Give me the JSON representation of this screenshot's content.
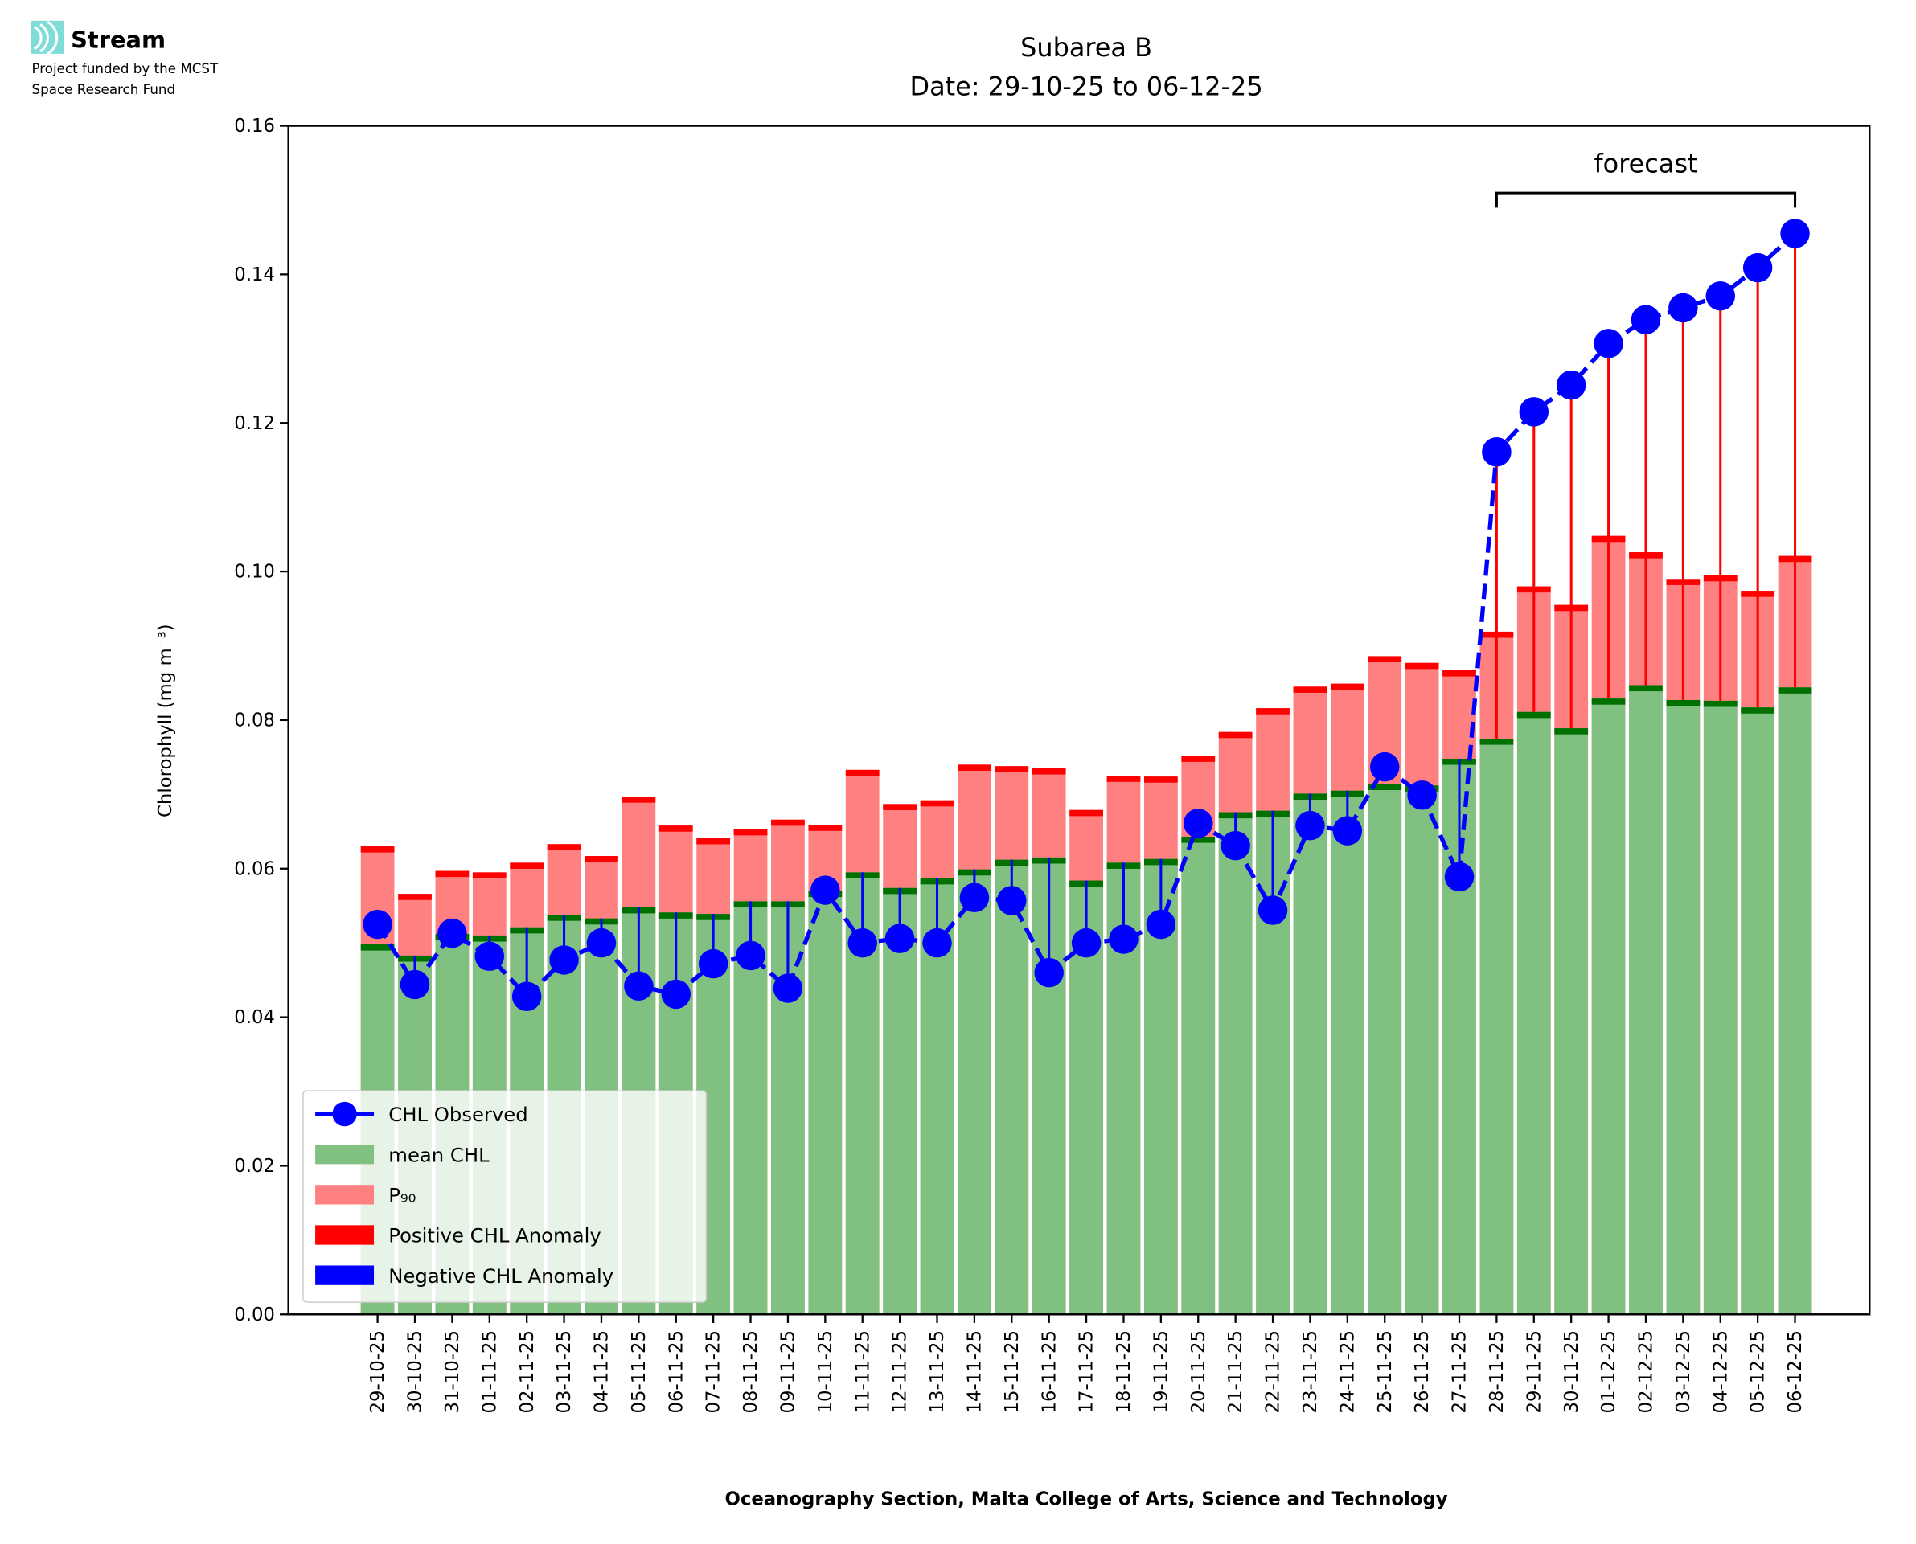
{
  "logo": {
    "brand": "Stream",
    "line1": "Project funded by the MCST",
    "line2": "Space Research Fund",
    "color": "#7fdcd8"
  },
  "chart_data": {
    "type": "bar",
    "title": "Subarea B",
    "subtitle": "Date: 29-10-25 to 06-12-25",
    "xlabel": "Oceanography Section, Malta College of Arts, Science and Technology",
    "ylabel": "Chlorophyll (mg m⁻³)",
    "ylim": [
      0,
      0.16
    ],
    "yticks": [
      "0.00",
      "0.02",
      "0.04",
      "0.06",
      "0.08",
      "0.10",
      "0.12",
      "0.14",
      "0.16"
    ],
    "grid": false,
    "legend_position": "bottom-left",
    "annotation": "forecast",
    "forecast_range": [
      "28-11-25",
      "06-12-25"
    ],
    "colors": {
      "observed": "#0000ff",
      "mean": "#80c080",
      "mean_edge": "#007000",
      "p90": "#ff8080",
      "positive": "#ff0000",
      "negative": "#0000ff"
    },
    "categories": [
      "29-10-25",
      "30-10-25",
      "31-10-25",
      "01-11-25",
      "02-11-25",
      "03-11-25",
      "04-11-25",
      "05-11-25",
      "06-11-25",
      "07-11-25",
      "08-11-25",
      "09-11-25",
      "10-11-25",
      "11-11-25",
      "12-11-25",
      "13-11-25",
      "14-11-25",
      "15-11-25",
      "16-11-25",
      "17-11-25",
      "18-11-25",
      "19-11-25",
      "20-11-25",
      "21-11-25",
      "22-11-25",
      "23-11-25",
      "24-11-25",
      "25-11-25",
      "26-11-25",
      "27-11-25",
      "28-11-25",
      "29-11-25",
      "30-11-25",
      "01-12-25",
      "02-12-25",
      "03-12-25",
      "04-12-25",
      "05-12-25",
      "06-12-25"
    ],
    "series": [
      {
        "name": "CHL Observed",
        "type": "line",
        "values": [
          0.0525,
          0.0444,
          0.0513,
          0.0482,
          0.0428,
          0.0477,
          0.05,
          0.0442,
          0.0431,
          0.0472,
          0.0483,
          0.0439,
          0.0571,
          0.05,
          0.0506,
          0.05,
          0.0561,
          0.0557,
          0.046,
          0.05,
          0.0505,
          0.0525,
          0.0661,
          0.0631,
          0.0544,
          0.0658,
          0.0651,
          0.0737,
          0.0699,
          0.0589,
          0.1161,
          0.1215,
          0.1251,
          0.1307,
          0.1339,
          0.1355,
          0.1371,
          0.1409,
          0.1455
        ]
      },
      {
        "name": "mean CHL",
        "type": "bar",
        "values": [
          0.0498,
          0.0483,
          0.0512,
          0.051,
          0.0521,
          0.0538,
          0.0533,
          0.0548,
          0.0541,
          0.0539,
          0.0556,
          0.0556,
          0.057,
          0.0595,
          0.0574,
          0.0587,
          0.0599,
          0.0612,
          0.0615,
          0.0584,
          0.0608,
          0.0613,
          0.0643,
          0.0676,
          0.0678,
          0.0701,
          0.0705,
          0.0714,
          0.0712,
          0.0748,
          0.0775,
          0.0811,
          0.0789,
          0.0829,
          0.0847,
          0.0827,
          0.0826,
          0.0817,
          0.0844
        ]
      },
      {
        "name": "P₉₀",
        "type": "bar",
        "values": [
          0.063,
          0.0566,
          0.0597,
          0.0595,
          0.0608,
          0.0633,
          0.0617,
          0.0697,
          0.0658,
          0.0641,
          0.0653,
          0.0666,
          0.0659,
          0.0733,
          0.0687,
          0.0692,
          0.074,
          0.0738,
          0.0735,
          0.0679,
          0.0725,
          0.0724,
          0.0752,
          0.0784,
          0.0816,
          0.0845,
          0.0849,
          0.0886,
          0.0877,
          0.0867,
          0.0919,
          0.098,
          0.0955,
          0.1048,
          0.1026,
          0.099,
          0.0995,
          0.0974,
          0.1021
        ]
      }
    ],
    "legend": [
      "CHL Observed",
      "mean CHL",
      "P₉₀",
      "Positive CHL Anomaly",
      "Negative CHL Anomaly"
    ]
  }
}
